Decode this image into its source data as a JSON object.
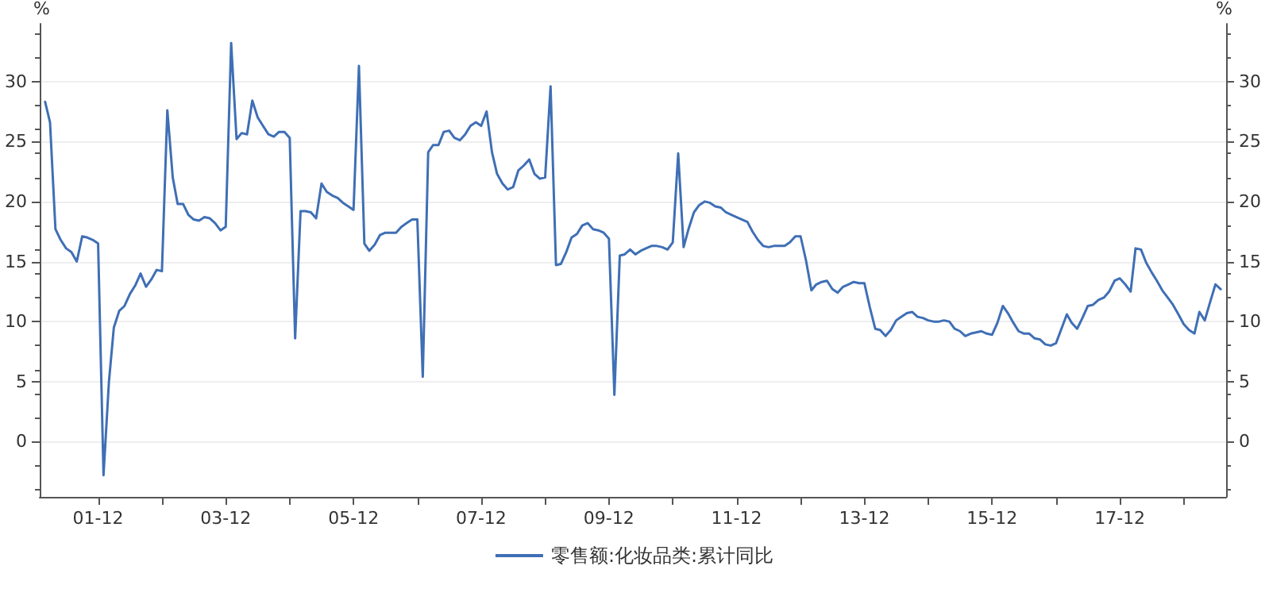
{
  "chart_data": {
    "type": "line",
    "ylabel": "%",
    "y2label": "%",
    "x": [
      "2001-02",
      "2001-03",
      "2001-04",
      "2001-05",
      "2001-06",
      "2001-07",
      "2001-08",
      "2001-09",
      "2001-10",
      "2001-11",
      "2001-12",
      "2002-01",
      "2002-02",
      "2002-03",
      "2002-04",
      "2002-05",
      "2002-06",
      "2002-07",
      "2002-08",
      "2002-09",
      "2002-10",
      "2002-11",
      "2002-12",
      "2003-01",
      "2003-02",
      "2003-03",
      "2003-04",
      "2003-05",
      "2003-06",
      "2003-07",
      "2003-08",
      "2003-09",
      "2003-10",
      "2003-11",
      "2003-12",
      "2004-01",
      "2004-02",
      "2004-03",
      "2004-04",
      "2004-05",
      "2004-06",
      "2004-07",
      "2004-08",
      "2004-09",
      "2004-10",
      "2004-11",
      "2004-12",
      "2005-01",
      "2005-02",
      "2005-03",
      "2005-04",
      "2005-05",
      "2005-06",
      "2005-07",
      "2005-08",
      "2005-09",
      "2005-10",
      "2005-11",
      "2005-12",
      "2006-01",
      "2006-02",
      "2006-03",
      "2006-04",
      "2006-05",
      "2006-06",
      "2006-07",
      "2006-08",
      "2006-09",
      "2006-10",
      "2006-11",
      "2006-12",
      "2007-01",
      "2007-02",
      "2007-03",
      "2007-04",
      "2007-05",
      "2007-06",
      "2007-07",
      "2007-08",
      "2007-09",
      "2007-10",
      "2007-11",
      "2007-12",
      "2008-01",
      "2008-02",
      "2008-03",
      "2008-04",
      "2008-05",
      "2008-06",
      "2008-07",
      "2008-08",
      "2008-09",
      "2008-10",
      "2008-11",
      "2008-12",
      "2009-01",
      "2009-02",
      "2009-03",
      "2009-04",
      "2009-05",
      "2009-06",
      "2009-07",
      "2009-08",
      "2009-09",
      "2009-10",
      "2009-11",
      "2009-12",
      "2010-01",
      "2010-02",
      "2010-03",
      "2010-04",
      "2010-05",
      "2010-06",
      "2010-07",
      "2010-08",
      "2010-09",
      "2010-10",
      "2010-11",
      "2010-12",
      "2011-01",
      "2011-02",
      "2011-03",
      "2011-04",
      "2011-05",
      "2011-06",
      "2011-07",
      "2011-08",
      "2011-09",
      "2011-10",
      "2011-11",
      "2011-12",
      "2012-01",
      "2012-02",
      "2012-03",
      "2012-04",
      "2012-05",
      "2012-06",
      "2012-07",
      "2012-08",
      "2012-09",
      "2012-10",
      "2012-11",
      "2012-12",
      "2013-01",
      "2013-02",
      "2013-03",
      "2013-04",
      "2013-05",
      "2013-06",
      "2013-07",
      "2013-08",
      "2013-09",
      "2013-10",
      "2013-11",
      "2013-12",
      "2014-01",
      "2014-02",
      "2014-03",
      "2014-04",
      "2014-05",
      "2014-06",
      "2014-07",
      "2014-08",
      "2014-09",
      "2014-10",
      "2014-11",
      "2014-12",
      "2015-01",
      "2015-02",
      "2015-03",
      "2015-04",
      "2015-05",
      "2015-06",
      "2015-07",
      "2015-08",
      "2015-09",
      "2015-10",
      "2015-11",
      "2015-12",
      "2016-01",
      "2016-02",
      "2016-03",
      "2016-04",
      "2016-05",
      "2016-06",
      "2016-07",
      "2016-08",
      "2016-09",
      "2016-10",
      "2016-11",
      "2016-12",
      "2017-01",
      "2017-02",
      "2017-03",
      "2017-04",
      "2017-05",
      "2017-06",
      "2017-07",
      "2017-08",
      "2017-09",
      "2017-10",
      "2017-11",
      "2017-12",
      "2018-01",
      "2018-02",
      "2018-03",
      "2018-04",
      "2018-05",
      "2018-06",
      "2018-07",
      "2018-08",
      "2018-09",
      "2018-10",
      "2018-11",
      "2018-12",
      "2019-01",
      "2019-02",
      "2019-03",
      "2019-04",
      "2019-05",
      "2019-06",
      "2019-07"
    ],
    "series": [
      {
        "name": "零售额:化妆品类:累计同比",
        "color": "#3f6fb5",
        "values": [
          28.3,
          26.6,
          17.7,
          16.8,
          16.1,
          15.8,
          15.0,
          17.1,
          17.0,
          16.8,
          16.5,
          -2.8,
          5.0,
          9.5,
          10.9,
          11.3,
          12.3,
          13.0,
          14.0,
          12.9,
          13.5,
          14.3,
          14.2,
          27.6,
          22.0,
          19.8,
          19.8,
          18.9,
          18.5,
          18.4,
          18.7,
          18.6,
          18.2,
          17.6,
          17.9,
          33.2,
          25.2,
          25.7,
          25.6,
          28.4,
          27.0,
          26.3,
          25.6,
          25.4,
          25.8,
          25.8,
          25.3,
          8.6,
          19.2,
          19.2,
          19.1,
          18.6,
          21.5,
          20.8,
          20.5,
          20.3,
          19.9,
          19.6,
          19.3,
          31.3,
          16.5,
          15.9,
          16.4,
          17.2,
          17.4,
          17.4,
          17.4,
          17.9,
          18.2,
          18.5,
          18.5,
          5.4,
          24.1,
          24.7,
          24.7,
          25.8,
          25.9,
          25.3,
          25.1,
          25.6,
          26.3,
          26.6,
          26.3,
          27.5,
          24.1,
          22.3,
          21.5,
          21.0,
          21.2,
          22.6,
          23.0,
          23.5,
          22.3,
          21.9,
          22.0,
          29.6,
          14.7,
          14.8,
          15.8,
          17.0,
          17.3,
          18.0,
          18.2,
          17.7,
          17.6,
          17.4,
          16.9,
          3.9,
          15.5,
          15.6,
          16.0,
          15.6,
          15.9,
          16.1,
          16.3,
          16.3,
          16.2,
          16.0,
          16.6,
          24.0,
          16.2,
          17.7,
          19.1,
          19.7,
          20.0,
          19.9,
          19.6,
          19.5,
          19.1,
          18.9,
          18.7,
          18.5,
          18.3,
          17.5,
          16.8,
          16.3,
          16.2,
          16.3,
          16.3,
          16.3,
          16.6,
          17.1,
          17.1,
          15.1,
          12.6,
          13.1,
          13.3,
          13.4,
          12.7,
          12.4,
          12.9,
          13.1,
          13.3,
          13.2,
          13.2,
          11.2,
          9.4,
          9.3,
          8.8,
          9.3,
          10.1,
          10.4,
          10.7,
          10.8,
          10.4,
          10.3,
          10.1,
          10.0,
          10.0,
          10.1,
          10.0,
          9.4,
          9.2,
          8.8,
          9.0,
          9.1,
          9.2,
          9.0,
          8.9,
          9.9,
          11.3,
          10.7,
          9.9,
          9.2,
          9.0,
          9.0,
          8.6,
          8.5,
          8.1,
          8.0,
          8.2,
          9.4,
          10.6,
          9.9,
          9.4,
          10.3,
          11.3,
          11.4,
          11.8,
          12.0,
          12.5,
          13.4,
          13.6,
          13.1,
          12.5,
          16.1,
          16.0,
          14.9,
          14.1,
          13.4,
          12.6,
          12.0,
          11.4,
          10.6,
          9.8,
          9.3,
          9.0,
          10.8,
          10.1,
          11.6,
          13.1,
          12.7
        ]
      }
    ],
    "xlim": [
      "2001-01",
      "2019-08"
    ],
    "xticks": [
      {
        "value": "2001-12",
        "label": "01-12"
      },
      {
        "value": "2002-12",
        "label": null
      },
      {
        "value": "2003-12",
        "label": "03-12"
      },
      {
        "value": "2004-12",
        "label": null
      },
      {
        "value": "2005-12",
        "label": "05-12"
      },
      {
        "value": "2006-12",
        "label": null
      },
      {
        "value": "2007-12",
        "label": "07-12"
      },
      {
        "value": "2008-12",
        "label": null
      },
      {
        "value": "2009-12",
        "label": "09-12"
      },
      {
        "value": "2010-12",
        "label": null
      },
      {
        "value": "2011-12",
        "label": "11-12"
      },
      {
        "value": "2012-12",
        "label": null
      },
      {
        "value": "2013-12",
        "label": "13-12"
      },
      {
        "value": "2014-12",
        "label": null
      },
      {
        "value": "2015-12",
        "label": "15-12"
      },
      {
        "value": "2016-12",
        "label": null
      },
      {
        "value": "2017-12",
        "label": "17-12"
      },
      {
        "value": "2018-12",
        "label": null
      }
    ],
    "ylim": [
      -4.6,
      34.8
    ],
    "yticks": [
      0,
      5,
      10,
      15,
      20,
      25,
      30
    ],
    "y2lim": [
      -4.6,
      34.8
    ],
    "y2ticks": [
      0,
      5,
      10,
      15,
      20,
      25,
      30
    ],
    "grid": "y",
    "legend": "bottom",
    "marker": "none",
    "line_style": "solid"
  }
}
